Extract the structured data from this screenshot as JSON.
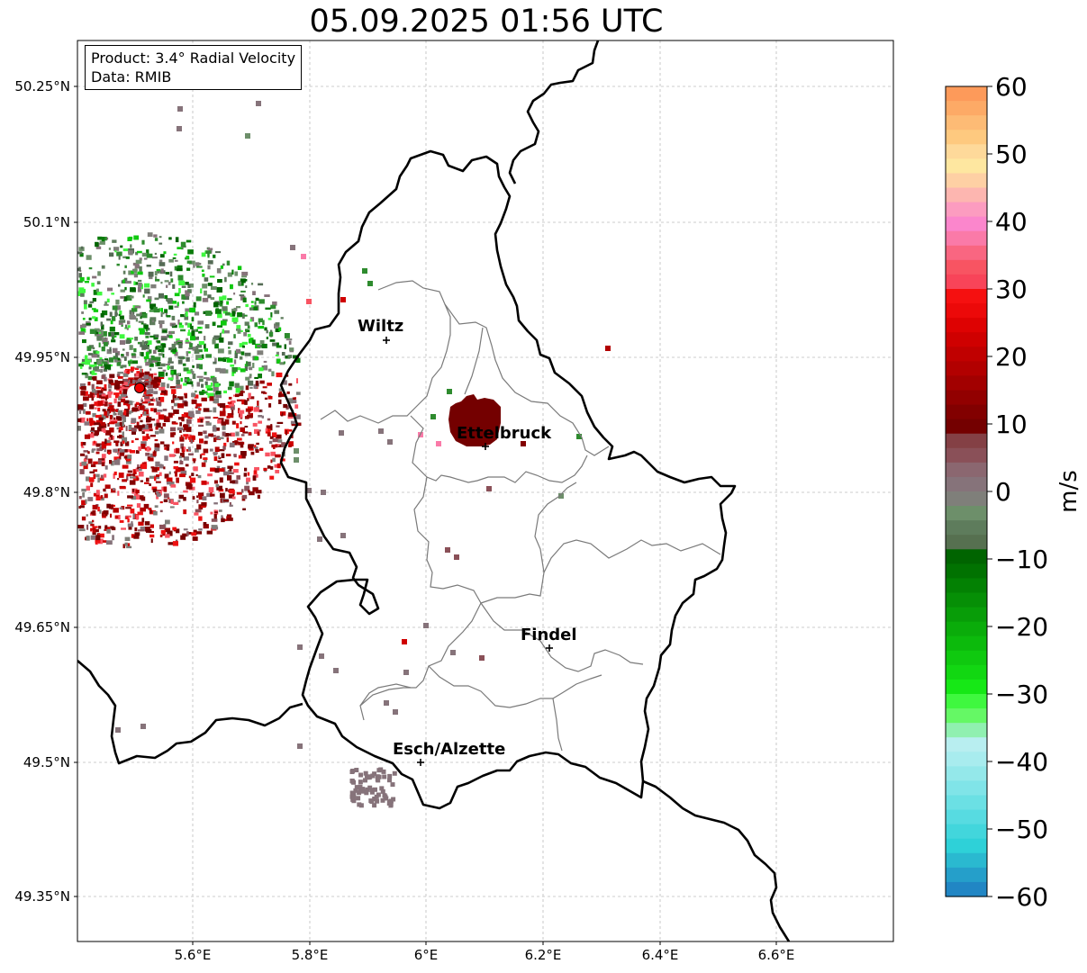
{
  "title": "05.09.2025 01:56 UTC",
  "info": {
    "product": "Product: 3.4° Radial Velocity",
    "data": "Data: RMIB"
  },
  "colorbar": {
    "unit": "m/s",
    "ticks": [
      "60",
      "50",
      "40",
      "30",
      "20",
      "10",
      "0",
      "−10",
      "−20",
      "−30",
      "−40",
      "−50",
      "−60"
    ],
    "colors": [
      "#fd9a5a",
      "#fdaa66",
      "#fdbb75",
      "#fec97f",
      "#fed99a",
      "#fee7a0",
      "#fed0a4",
      "#fdb6b0",
      "#fc9cc0",
      "#fb86cc",
      "#fa7aa8",
      "#f96681",
      "#f85462",
      "#f84459",
      "#f51010",
      "#ec0909",
      "#de0202",
      "#cf0000",
      "#c00000",
      "#b20000",
      "#a20000",
      "#920000",
      "#820000",
      "#740000",
      "#844045",
      "#8a5058",
      "#8b6770",
      "#86737a",
      "#7f7f7a",
      "#6d8f6a",
      "#5e7c5c",
      "#567050",
      "#006400",
      "#017201",
      "#038103",
      "#068f06",
      "#089d08",
      "#0aac0a",
      "#0cba0c",
      "#0fc90f",
      "#12d712",
      "#16e816",
      "#3ff83f",
      "#65f865",
      "#90f0b0",
      "#b8eef0",
      "#a8ecee",
      "#94e8ea",
      "#80e4e8",
      "#6be0e4",
      "#57dbe1",
      "#42d6dc",
      "#2ed1d8",
      "#2ab9d0",
      "#259fca",
      "#2186c4"
    ]
  },
  "map": {
    "x_ticks": [
      "5.6°E",
      "5.8°E",
      "6°E",
      "6.2°E",
      "6.4°E",
      "6.6°E"
    ],
    "y_ticks": [
      "50.25°N",
      "50.1°N",
      "49.95°N",
      "49.8°N",
      "49.65°N",
      "49.5°N",
      "49.35°N"
    ],
    "cities": [
      {
        "name": "Wiltz"
      },
      {
        "name": "Ettelbruck"
      },
      {
        "name": "Findel"
      },
      {
        "name": "Esch/Alzette"
      }
    ]
  }
}
